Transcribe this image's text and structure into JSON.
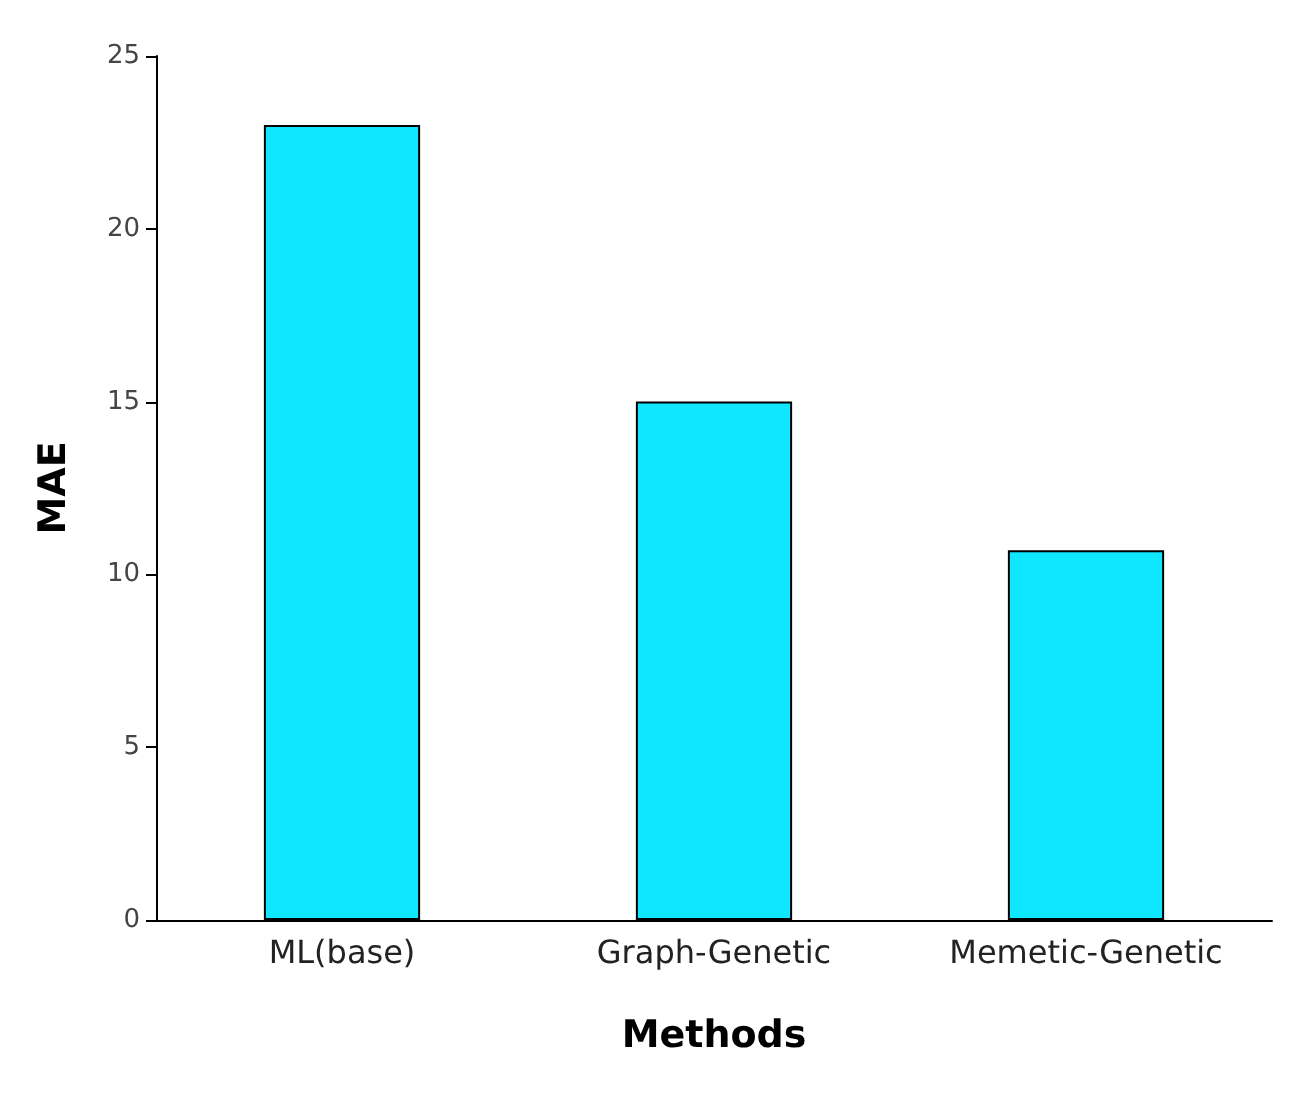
{
  "chart_data": {
    "type": "bar",
    "xlabel": "Methods",
    "ylabel": "MAE",
    "categories": [
      "ML(base)",
      "Graph-Genetic",
      "Memetic-Genetic"
    ],
    "values": [
      23,
      15,
      10.7
    ],
    "color": "#0fe6ff",
    "ylim": [
      0,
      25
    ],
    "yticks": [
      0,
      5,
      10,
      15,
      20,
      25
    ],
    "grid": false
  }
}
